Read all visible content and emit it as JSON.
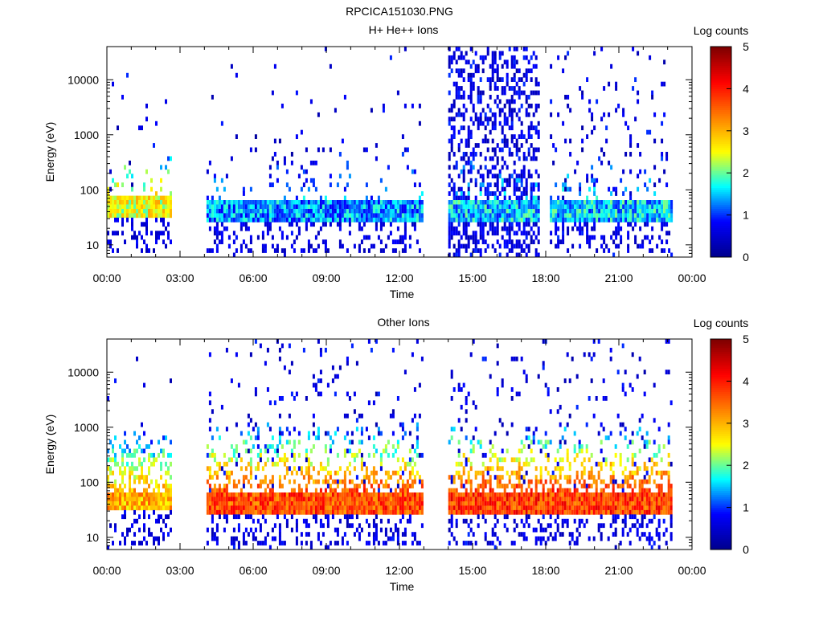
{
  "page_title": "RPCICA151030.PNG",
  "colorbar_ticks": [
    "0",
    "1",
    "2",
    "3",
    "4",
    "5"
  ],
  "chart_data": [
    {
      "type": "heatmap",
      "title": "H+ He++ Ions",
      "xlabel": "Time",
      "ylabel": "Energy (eV)",
      "colorbar_label": "Log counts",
      "colorbar_range": [
        0,
        5
      ],
      "colormap": [
        "#00008f",
        "#0000ff",
        "#00ffff",
        "#ffff00",
        "#ff8000",
        "#ff0000",
        "#800000"
      ],
      "y_scale": "log",
      "ylim": [
        6,
        40000
      ],
      "xlim": [
        0,
        24
      ],
      "x_ticks": [
        "00:00",
        "03:00",
        "06:00",
        "09:00",
        "12:00",
        "15:00",
        "18:00",
        "21:00",
        "00:00"
      ],
      "y_ticks": [
        "10",
        "100",
        "1000",
        "10000"
      ],
      "data_segments": [
        {
          "start": "00:00",
          "end": "02:35",
          "band_energy_eV": [
            30,
            85
          ],
          "band_log_counts": 2.5,
          "noise_level": "sparse"
        },
        {
          "start": "04:05",
          "end": "12:55",
          "band_energy_eV": [
            28,
            60
          ],
          "band_log_counts": 1.3,
          "noise_level": "sparse"
        },
        {
          "start": "14:00",
          "end": "17:40",
          "band_energy_eV": [
            28,
            60
          ],
          "band_log_counts": 1.5,
          "noise_level": "dense"
        },
        {
          "start": "18:10",
          "end": "23:10",
          "band_energy_eV": [
            28,
            60
          ],
          "band_log_counts": 1.5,
          "noise_level": "moderate"
        }
      ],
      "grid": false
    },
    {
      "type": "heatmap",
      "title": "Other Ions",
      "xlabel": "Time",
      "ylabel": "Energy (eV)",
      "colorbar_label": "Log counts",
      "colorbar_range": [
        0,
        5
      ],
      "colormap": [
        "#00008f",
        "#0000ff",
        "#00ffff",
        "#ffff00",
        "#ff8000",
        "#ff0000",
        "#800000"
      ],
      "y_scale": "log",
      "ylim": [
        6,
        40000
      ],
      "xlim": [
        0,
        24
      ],
      "x_ticks": [
        "00:00",
        "03:00",
        "06:00",
        "09:00",
        "12:00",
        "15:00",
        "18:00",
        "21:00",
        "00:00"
      ],
      "y_ticks": [
        "10",
        "100",
        "1000",
        "10000"
      ],
      "data_segments": [
        {
          "start": "00:00",
          "end": "02:35",
          "band_energy_eV": [
            30,
            70
          ],
          "band_log_counts": 3.0,
          "noise_level": "sparse"
        },
        {
          "start": "04:05",
          "end": "12:55",
          "band_energy_eV": [
            28,
            70
          ],
          "band_log_counts": 3.7,
          "noise_level": "moderate"
        },
        {
          "start": "14:00",
          "end": "23:10",
          "band_energy_eV": [
            28,
            70
          ],
          "band_log_counts": 3.8,
          "noise_level": "moderate"
        }
      ],
      "grid": false
    }
  ]
}
